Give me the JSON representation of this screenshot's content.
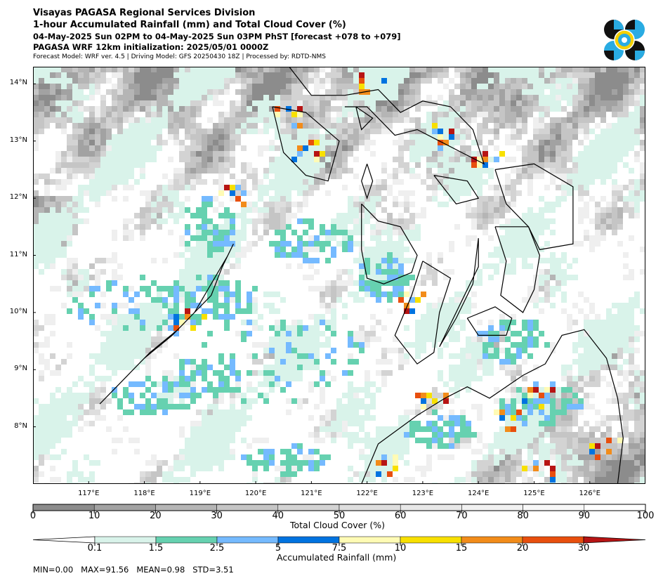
{
  "header": {
    "line1": "Visayas PAGASA Regional Services Division",
    "line2": "1-hour Accumulated Rainfall (mm) and Total Cloud Cover (%)",
    "line3": "04-May-2025 Sun 02PM to 04-May-2025 Sun 03PM PhST [forecast +078 to +079]",
    "line4": "PAGASA WRF 12km initialization: 2025/05/01 0000Z",
    "line5": "Forecast Model: WRF ver. 4.5 | Driving Model: GFS 20250430 18Z | Processed by: RDTD-NMS"
  },
  "logo": {
    "name": "pagasa-logo-icon",
    "colors": [
      "#111111",
      "#29abe2",
      "#f5d000"
    ]
  },
  "map": {
    "lon_range": [
      116.0,
      127.0
    ],
    "lat_range": [
      7.0,
      14.3
    ],
    "lat_labels": [
      "14°N",
      "13°N",
      "12°N",
      "11°N",
      "10°N",
      "9°N",
      "8°N"
    ],
    "lat_values": [
      14,
      13,
      12,
      11,
      10,
      9,
      8
    ],
    "lon_labels": [
      "117°E",
      "118°E",
      "119°E",
      "120°E",
      "121°E",
      "122°E",
      "123°E",
      "124°E",
      "125°E",
      "126°E"
    ],
    "lon_values": [
      117,
      118,
      119,
      120,
      121,
      122,
      123,
      124,
      125,
      126
    ]
  },
  "cloud_colorbar": {
    "title": "Total Cloud Cover (%)",
    "ticks": [
      "0",
      "10",
      "20",
      "30",
      "40",
      "50",
      "60",
      "70",
      "80",
      "90",
      "100"
    ],
    "colors": [
      "#8c8c8c",
      "#a2a2a2",
      "#b5b5b5",
      "#c5c5c5",
      "#d3d3d3",
      "#dedede",
      "#e8e8e8",
      "#f1f1f1",
      "#f8f8f8",
      "#ffffff"
    ]
  },
  "rain_colorbar": {
    "title": "Accumulated Rainfall (mm)",
    "ticks": [
      "0.1",
      "1.5",
      "2.5",
      "5",
      "7.5",
      "10",
      "15",
      "20",
      "30"
    ],
    "colors": [
      "#ffffff",
      "#d9f3ea",
      "#66d1b0",
      "#75baff",
      "#0073e0",
      "#fffbb5",
      "#f8e000",
      "#f28c1a",
      "#e84f0e",
      "#b71414"
    ]
  },
  "stats": {
    "min_label": "MIN=",
    "min": "0.00",
    "max_label": "MAX=",
    "max": "91.56",
    "mean_label": "MEAN=",
    "mean": "0.98",
    "std_label": "STD=",
    "std": "3.51"
  }
}
